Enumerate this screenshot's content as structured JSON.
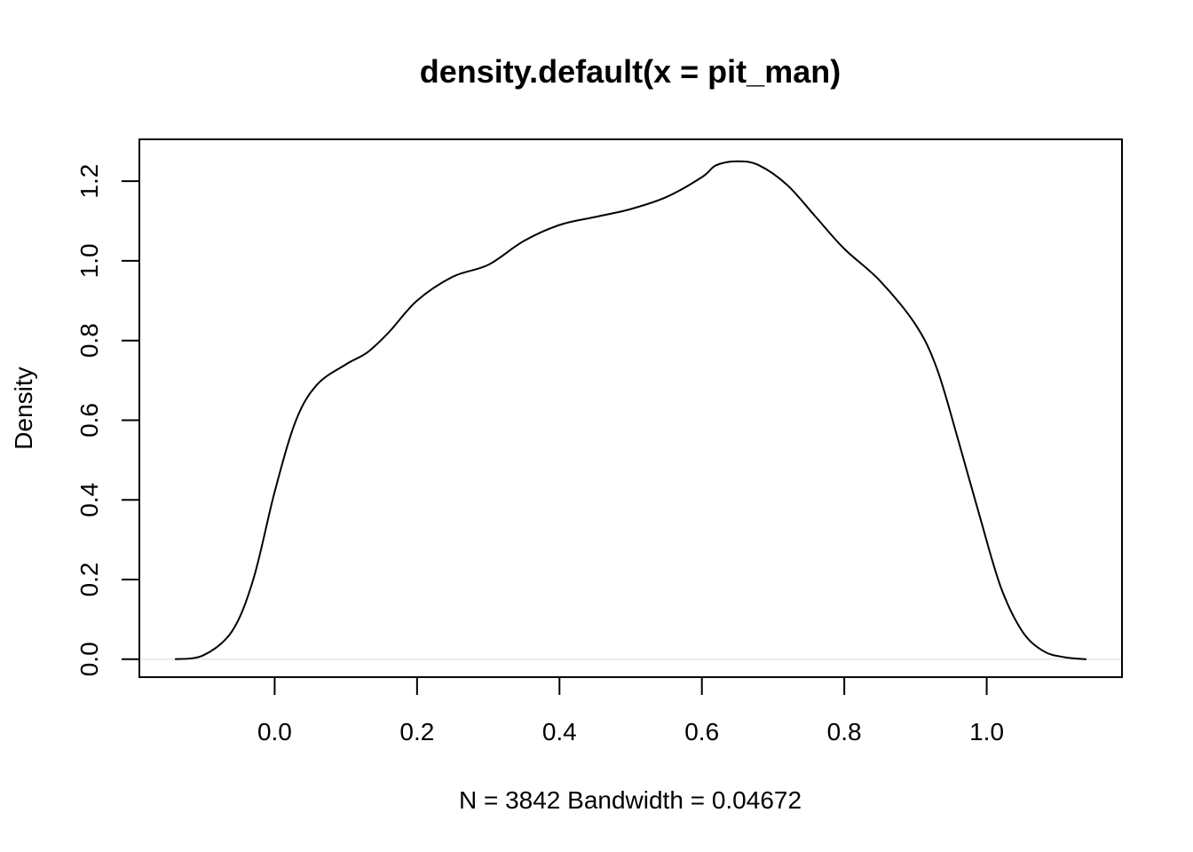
{
  "chart_data": {
    "type": "line",
    "title": "density.default(x = pit_man)",
    "xlabel": "N = 3842   Bandwidth = 0.04672",
    "ylabel": "Density",
    "xlim": [
      -0.19,
      1.19
    ],
    "ylim": [
      -0.045,
      1.305
    ],
    "x_ticks": [
      0.0,
      0.2,
      0.4,
      0.6,
      0.8,
      1.0
    ],
    "x_tick_labels": [
      "0.0",
      "0.2",
      "0.4",
      "0.6",
      "0.8",
      "1.0"
    ],
    "y_ticks": [
      0.0,
      0.2,
      0.4,
      0.6,
      0.8,
      1.0,
      1.2
    ],
    "y_tick_labels": [
      "0.0",
      "0.2",
      "0.4",
      "0.6",
      "0.8",
      "1.0",
      "1.2"
    ],
    "grid": false,
    "box": true,
    "baseline": 0,
    "series": [
      {
        "color": "#000000",
        "points": [
          [
            -0.14,
            0.0
          ],
          [
            -0.1,
            0.01
          ],
          [
            -0.06,
            0.07
          ],
          [
            -0.03,
            0.2
          ],
          [
            0.0,
            0.42
          ],
          [
            0.03,
            0.6
          ],
          [
            0.06,
            0.69
          ],
          [
            0.1,
            0.74
          ],
          [
            0.13,
            0.77
          ],
          [
            0.16,
            0.82
          ],
          [
            0.2,
            0.9
          ],
          [
            0.25,
            0.96
          ],
          [
            0.3,
            0.99
          ],
          [
            0.35,
            1.05
          ],
          [
            0.4,
            1.09
          ],
          [
            0.45,
            1.11
          ],
          [
            0.5,
            1.13
          ],
          [
            0.55,
            1.16
          ],
          [
            0.6,
            1.21
          ],
          [
            0.62,
            1.24
          ],
          [
            0.65,
            1.25
          ],
          [
            0.68,
            1.24
          ],
          [
            0.72,
            1.19
          ],
          [
            0.76,
            1.11
          ],
          [
            0.8,
            1.03
          ],
          [
            0.85,
            0.95
          ],
          [
            0.9,
            0.84
          ],
          [
            0.93,
            0.73
          ],
          [
            0.96,
            0.55
          ],
          [
            0.99,
            0.36
          ],
          [
            1.02,
            0.18
          ],
          [
            1.05,
            0.07
          ],
          [
            1.08,
            0.02
          ],
          [
            1.11,
            0.005
          ],
          [
            1.14,
            0.0
          ]
        ]
      }
    ]
  }
}
